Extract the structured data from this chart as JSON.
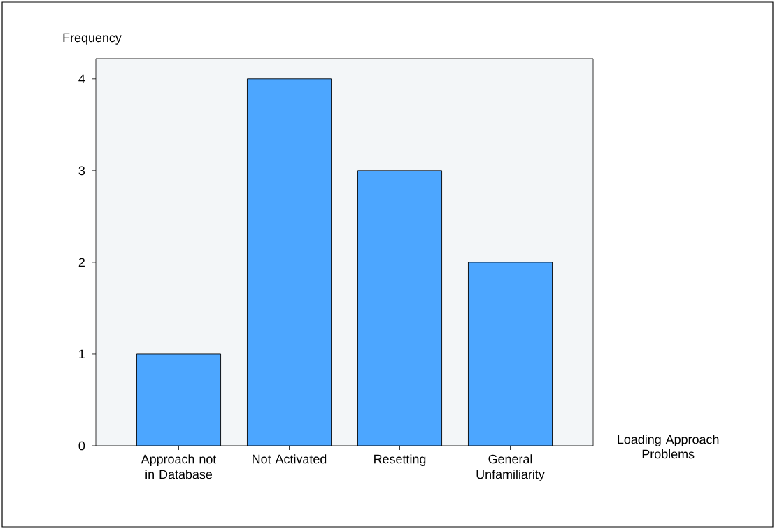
{
  "chart_data": {
    "type": "bar",
    "xlabel": "Loading Approach Problems",
    "ylabel": "Frequency",
    "categories": [
      "Approach not in Database",
      "Not Activated",
      "Resetting",
      "General Unfamiliarity"
    ],
    "values": [
      1,
      4,
      3,
      2
    ],
    "color": "#4ca6ff",
    "ylim": [
      0,
      4.22
    ],
    "yticks": [
      0,
      1,
      2,
      3,
      4
    ],
    "grid": false
  }
}
